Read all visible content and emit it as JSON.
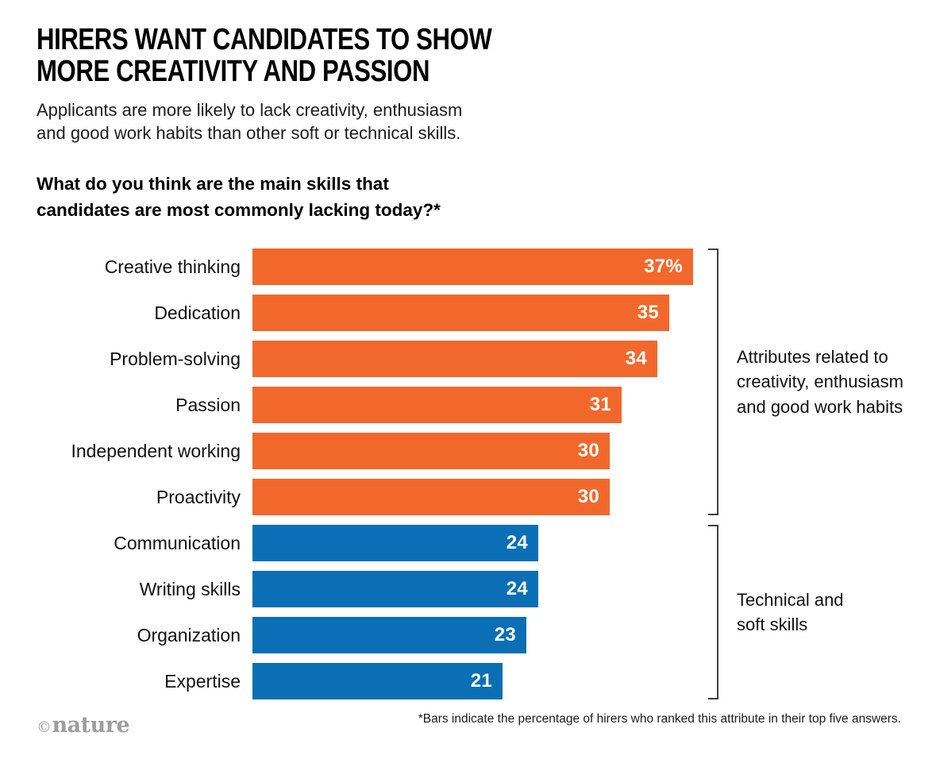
{
  "header": {
    "title_lines": [
      "HIRERS WANT CANDIDATES TO SHOW",
      "MORE CREATIVITY AND PASSION"
    ],
    "subtitle_lines": [
      "Applicants are more likely to lack creativity, enthusiasm",
      "and good work habits than other soft or technical skills."
    ],
    "question_lines": [
      "What do you think are the main skills that",
      "candidates are most commonly lacking today?*"
    ]
  },
  "chart_data": {
    "type": "bar",
    "orientation": "horizontal",
    "title": "What do you think are the main skills that candidates are most commonly lacking today?*",
    "xlabel": "",
    "ylabel": "",
    "xlim": [
      0,
      37
    ],
    "grid": false,
    "categories": [
      "Creative thinking",
      "Dedication",
      "Problem-solving",
      "Passion",
      "Independent working",
      "Proactivity",
      "Communication",
      "Writing skills",
      "Organization",
      "Expertise"
    ],
    "values": [
      37,
      35,
      34,
      31,
      30,
      30,
      24,
      24,
      23,
      21
    ],
    "value_labels": [
      "37%",
      "35",
      "34",
      "31",
      "30",
      "30",
      "24",
      "24",
      "23",
      "21"
    ],
    "bar_colors": [
      "orange",
      "orange",
      "orange",
      "orange",
      "orange",
      "orange",
      "blue",
      "blue",
      "blue",
      "blue"
    ],
    "groups": [
      {
        "label": "Attributes related to creativity, enthusiasm and good work habits",
        "start_index": 0,
        "end_index": 5,
        "color": "#F2682C"
      },
      {
        "label": "Technical and soft skills",
        "start_index": 6,
        "end_index": 9,
        "color": "#0B6FB5"
      }
    ]
  },
  "colors": {
    "orange": "#F2682C",
    "blue": "#0B6FB5",
    "bracket": "#3F3F3F",
    "brand_gray": "#9E9E9E"
  },
  "footer": {
    "brand_copyright": "©",
    "brand_name": "nature",
    "footnote": "*Bars indicate the percentage of hirers who ranked this attribute in their top five answers."
  }
}
